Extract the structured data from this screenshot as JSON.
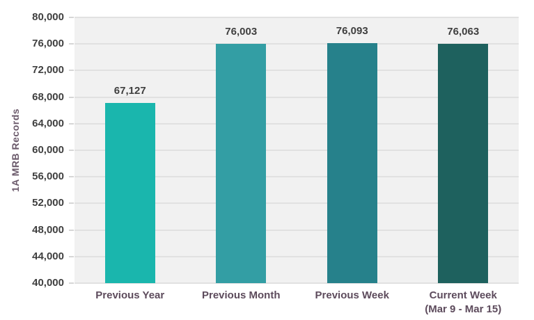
{
  "chart_data": {
    "type": "bar",
    "title": "",
    "xlabel": "",
    "ylabel": "1A MRB Records",
    "ylim": [
      40000,
      80000
    ],
    "ytick_step": 4000,
    "grid": true,
    "legend": "none",
    "categories": [
      "Previous Year",
      "Previous Month",
      "Previous Week",
      "Current Week\n(Mar 9 - Mar 15)"
    ],
    "values": [
      67127,
      76003,
      76093,
      76063
    ],
    "data_labels": [
      "67,127",
      "76,003",
      "76,093",
      "76,063"
    ],
    "bar_colors": [
      "#1ab6ad",
      "#339ea4",
      "#26818b",
      "#1e615e"
    ],
    "colors": {
      "plot_background": "#f1f1f1",
      "gridline": "#e1e1e1",
      "tick_mark": "#d6d6d6",
      "tick_label_text": "#3f3f3f",
      "value_label_text": "#3f3f3f",
      "category_label_text": "#5d4b5c",
      "axis_title_text": "#6b5a6b",
      "page_background": "#ffffff"
    }
  }
}
